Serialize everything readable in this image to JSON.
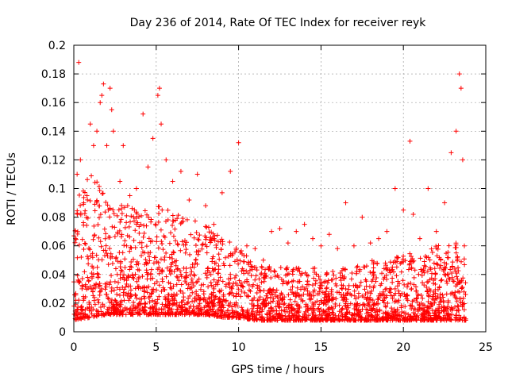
{
  "chart_data": {
    "type": "scatter",
    "title": "Day 236 of 2014, Rate Of TEC Index for receiver reyk",
    "xlabel": "GPS time / hours",
    "ylabel": "ROTI / TECUs",
    "xlim": [
      0,
      25
    ],
    "ylim": [
      0,
      0.2
    ],
    "x_ticks": [
      "0",
      "5",
      "10",
      "15",
      "20",
      "25"
    ],
    "y_ticks": [
      "0",
      "0.02",
      "0.04",
      "0.06",
      "0.08",
      "0.1",
      "0.12",
      "0.14",
      "0.16",
      "0.18",
      "0.2"
    ],
    "grid": true,
    "marker": "+",
    "color": "#ff0000",
    "series": [
      {
        "name": "ROTI",
        "points": [
          [
            0.1,
            0.065
          ],
          [
            0.2,
            0.11
          ],
          [
            0.3,
            0.188
          ],
          [
            0.4,
            0.12
          ],
          [
            0.6,
            0.09
          ],
          [
            0.8,
            0.095
          ],
          [
            1.0,
            0.145
          ],
          [
            1.2,
            0.13
          ],
          [
            1.4,
            0.14
          ],
          [
            1.6,
            0.16
          ],
          [
            1.7,
            0.165
          ],
          [
            1.8,
            0.173
          ],
          [
            2.0,
            0.13
          ],
          [
            2.2,
            0.17
          ],
          [
            2.3,
            0.155
          ],
          [
            2.4,
            0.14
          ],
          [
            2.8,
            0.105
          ],
          [
            3.0,
            0.13
          ],
          [
            3.4,
            0.095
          ],
          [
            3.8,
            0.1
          ],
          [
            4.2,
            0.152
          ],
          [
            4.5,
            0.115
          ],
          [
            4.8,
            0.135
          ],
          [
            5.1,
            0.165
          ],
          [
            5.2,
            0.17
          ],
          [
            5.3,
            0.145
          ],
          [
            5.6,
            0.12
          ],
          [
            6.0,
            0.105
          ],
          [
            6.5,
            0.112
          ],
          [
            7.0,
            0.092
          ],
          [
            7.5,
            0.11
          ],
          [
            8.0,
            0.088
          ],
          [
            8.5,
            0.075
          ],
          [
            9.0,
            0.097
          ],
          [
            9.5,
            0.112
          ],
          [
            10.0,
            0.132
          ],
          [
            10.5,
            0.06
          ],
          [
            11.0,
            0.058
          ],
          [
            11.5,
            0.05
          ],
          [
            12.0,
            0.07
          ],
          [
            12.5,
            0.072
          ],
          [
            13.0,
            0.062
          ],
          [
            13.5,
            0.07
          ],
          [
            14.0,
            0.075
          ],
          [
            14.5,
            0.065
          ],
          [
            15.0,
            0.06
          ],
          [
            15.5,
            0.068
          ],
          [
            16.0,
            0.058
          ],
          [
            16.5,
            0.09
          ],
          [
            17.0,
            0.06
          ],
          [
            17.5,
            0.08
          ],
          [
            18.0,
            0.062
          ],
          [
            18.5,
            0.065
          ],
          [
            19.0,
            0.07
          ],
          [
            19.5,
            0.1
          ],
          [
            20.0,
            0.085
          ],
          [
            20.4,
            0.133
          ],
          [
            20.6,
            0.082
          ],
          [
            21.0,
            0.065
          ],
          [
            21.5,
            0.1
          ],
          [
            22.0,
            0.07
          ],
          [
            22.5,
            0.09
          ],
          [
            22.9,
            0.125
          ],
          [
            23.2,
            0.14
          ],
          [
            23.4,
            0.18
          ],
          [
            23.5,
            0.17
          ],
          [
            23.6,
            0.12
          ],
          [
            23.7,
            0.06
          ],
          [
            0.5,
            0.03
          ],
          [
            1.5,
            0.04
          ],
          [
            2.5,
            0.035
          ],
          [
            3.5,
            0.045
          ],
          [
            4.5,
            0.04
          ],
          [
            5.5,
            0.05
          ],
          [
            6.5,
            0.04
          ],
          [
            7.5,
            0.035
          ],
          [
            8.5,
            0.03
          ],
          [
            9.5,
            0.04
          ],
          [
            10.5,
            0.025
          ],
          [
            11.5,
            0.02
          ],
          [
            12.5,
            0.02
          ],
          [
            13.5,
            0.025
          ],
          [
            14.5,
            0.02
          ],
          [
            15.5,
            0.025
          ],
          [
            16.5,
            0.03
          ],
          [
            17.5,
            0.025
          ],
          [
            18.5,
            0.025
          ],
          [
            19.5,
            0.03
          ],
          [
            20.5,
            0.03
          ],
          [
            21.5,
            0.035
          ],
          [
            22.5,
            0.04
          ],
          [
            23.5,
            0.035
          ]
        ]
      }
    ],
    "envelope": {
      "description": "upper bound of the dense point cloud by hour",
      "hours": [
        0,
        1,
        2,
        3,
        4,
        5,
        6,
        7,
        8,
        9,
        10,
        11,
        12,
        13,
        14,
        15,
        16,
        17,
        18,
        19,
        20,
        21,
        22,
        23,
        23.8
      ],
      "upper": [
        0.09,
        0.11,
        0.1,
        0.09,
        0.085,
        0.09,
        0.085,
        0.08,
        0.075,
        0.065,
        0.06,
        0.05,
        0.045,
        0.045,
        0.045,
        0.045,
        0.045,
        0.045,
        0.05,
        0.05,
        0.055,
        0.055,
        0.06,
        0.065,
        0.06
      ],
      "lower": [
        0.008,
        0.01,
        0.012,
        0.012,
        0.012,
        0.012,
        0.012,
        0.012,
        0.012,
        0.01,
        0.01,
        0.008,
        0.008,
        0.008,
        0.008,
        0.008,
        0.008,
        0.008,
        0.008,
        0.008,
        0.008,
        0.008,
        0.008,
        0.008,
        0.008
      ]
    }
  }
}
